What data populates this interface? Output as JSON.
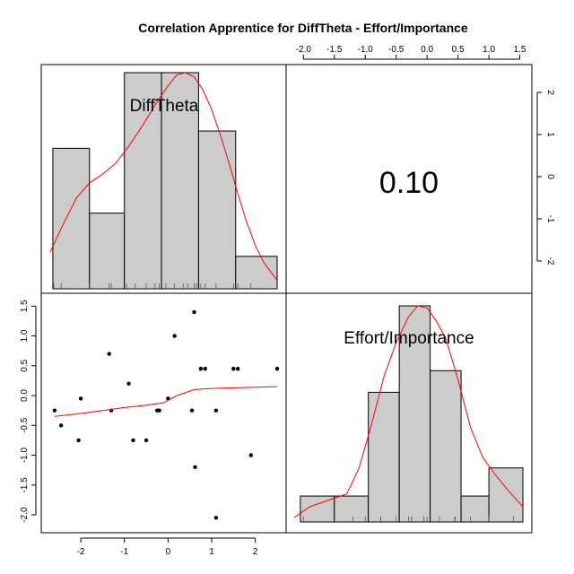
{
  "chart_data": {
    "type": "scatter-matrix",
    "title": "Correlation Apprentice for DiffTheta - Effort/Importance",
    "variables": [
      "DiffTheta",
      "Effort/Importance"
    ],
    "correlation_label": "0.10",
    "ranges": {
      "DiffTheta": [
        -2.7,
        2.5
      ],
      "Effort/Importance": [
        -2.15,
        1.55
      ]
    },
    "axis_ticks": {
      "top": [
        "-2.0",
        "-1.5",
        "-1.0",
        "-0.5",
        "0.0",
        "0.5",
        "1.0",
        "1.5"
      ],
      "right": [
        "2",
        "1",
        "0",
        "-1",
        "-2"
      ],
      "left": [
        "1.5",
        "1.0",
        "0.5",
        "0.0",
        "-0.5",
        "-1.0",
        "-1.5",
        "-2.0"
      ],
      "bottom": [
        "-2",
        "-1",
        "0",
        "1",
        "2"
      ]
    },
    "top_axis_values": [
      -2.0,
      -1.5,
      -1.0,
      -0.5,
      0.0,
      0.5,
      1.0,
      1.5
    ],
    "right_axis_values": [
      2,
      1,
      0,
      -1,
      -2
    ],
    "left_axis_values": [
      1.5,
      1.0,
      0.5,
      0.0,
      -0.5,
      -1.0,
      -1.5,
      -2.0
    ],
    "bottom_axis_values": [
      -2,
      -1,
      0,
      1,
      2
    ],
    "hist_x": {
      "breaks": [
        -2.64,
        -1.8,
        -1.0,
        -0.15,
        0.7,
        1.55,
        2.5
      ],
      "heights": [
        0.65,
        0.35,
        1.0,
        1.0,
        0.73,
        0.15
      ],
      "density": [
        [
          -2.7,
          0.17
        ],
        [
          -2.4,
          0.3
        ],
        [
          -2.1,
          0.42
        ],
        [
          -1.8,
          0.49
        ],
        [
          -1.5,
          0.53
        ],
        [
          -1.2,
          0.58
        ],
        [
          -0.9,
          0.66
        ],
        [
          -0.6,
          0.75
        ],
        [
          -0.3,
          0.85
        ],
        [
          0.0,
          0.94
        ],
        [
          0.2,
          0.99
        ],
        [
          0.4,
          1.0
        ],
        [
          0.6,
          0.98
        ],
        [
          0.8,
          0.92
        ],
        [
          1.0,
          0.83
        ],
        [
          1.2,
          0.71
        ],
        [
          1.4,
          0.58
        ],
        [
          1.6,
          0.44
        ],
        [
          1.8,
          0.31
        ],
        [
          2.0,
          0.2
        ],
        [
          2.2,
          0.12
        ],
        [
          2.5,
          0.04
        ]
      ],
      "rug": [
        -2.62,
        -2.45,
        -1.8,
        -1.35,
        -1.3,
        -0.95,
        -0.75,
        -0.5,
        -0.3,
        -0.2,
        -0.05,
        0.15,
        0.35,
        0.45,
        0.6,
        0.65,
        0.75,
        0.85,
        1.1,
        1.5,
        1.6,
        1.9
      ]
    },
    "hist_y": {
      "breaks": [
        -2.05,
        -1.5,
        -0.95,
        -0.45,
        0.05,
        0.55,
        1.0,
        1.55
      ],
      "heights": [
        0.12,
        0.12,
        0.6,
        1.0,
        0.7,
        0.12,
        0.25
      ],
      "density": [
        [
          -2.15,
          0.02
        ],
        [
          -1.9,
          0.07
        ],
        [
          -1.6,
          0.1
        ],
        [
          -1.3,
          0.13
        ],
        [
          -1.1,
          0.25
        ],
        [
          -0.9,
          0.45
        ],
        [
          -0.7,
          0.67
        ],
        [
          -0.5,
          0.83
        ],
        [
          -0.3,
          0.95
        ],
        [
          -0.15,
          1.0
        ],
        [
          0.0,
          0.99
        ],
        [
          0.15,
          0.93
        ],
        [
          0.3,
          0.85
        ],
        [
          0.5,
          0.66
        ],
        [
          0.7,
          0.44
        ],
        [
          0.9,
          0.3
        ],
        [
          1.1,
          0.22
        ],
        [
          1.3,
          0.15
        ],
        [
          1.55,
          0.07
        ]
      ],
      "rug": [
        -2.0,
        -1.2,
        -1.0,
        -0.75,
        -0.75,
        -0.5,
        -0.3,
        -0.25,
        -0.25,
        -0.25,
        -0.05,
        0.0,
        0.2,
        0.45,
        0.45,
        0.45,
        0.45,
        0.7,
        1.0,
        1.4
      ]
    },
    "scatter": [
      [
        -2.6,
        -0.25
      ],
      [
        -2.45,
        -0.5
      ],
      [
        -2.05,
        -0.75
      ],
      [
        -2.0,
        -0.05
      ],
      [
        -1.35,
        0.7
      ],
      [
        -1.3,
        -0.25
      ],
      [
        -0.9,
        0.2
      ],
      [
        -0.8,
        -0.75
      ],
      [
        -0.5,
        -0.75
      ],
      [
        -0.25,
        -0.25
      ],
      [
        -0.2,
        -0.25
      ],
      [
        0.0,
        -0.05
      ],
      [
        0.15,
        1.0
      ],
      [
        0.55,
        -0.25
      ],
      [
        0.6,
        1.4
      ],
      [
        0.62,
        -1.2
      ],
      [
        0.75,
        0.45
      ],
      [
        0.85,
        0.45
      ],
      [
        1.1,
        -0.25
      ],
      [
        1.1,
        -2.05
      ],
      [
        1.5,
        0.45
      ],
      [
        1.6,
        0.45
      ],
      [
        1.9,
        -1.0
      ],
      [
        2.5,
        0.45
      ]
    ],
    "smooth": [
      [
        -2.6,
        -0.35
      ],
      [
        -2.0,
        -0.3
      ],
      [
        -1.5,
        -0.25
      ],
      [
        -1.0,
        -0.2
      ],
      [
        -0.5,
        -0.16
      ],
      [
        -0.1,
        -0.12
      ],
      [
        0.2,
        0.0
      ],
      [
        0.6,
        0.1
      ],
      [
        1.0,
        0.12
      ],
      [
        1.5,
        0.13
      ],
      [
        2.0,
        0.14
      ],
      [
        2.5,
        0.15
      ]
    ],
    "colors": {
      "bar": "#cccccc",
      "density": "#ff0000",
      "points": "#000000"
    },
    "grid": false,
    "legend": "none"
  }
}
